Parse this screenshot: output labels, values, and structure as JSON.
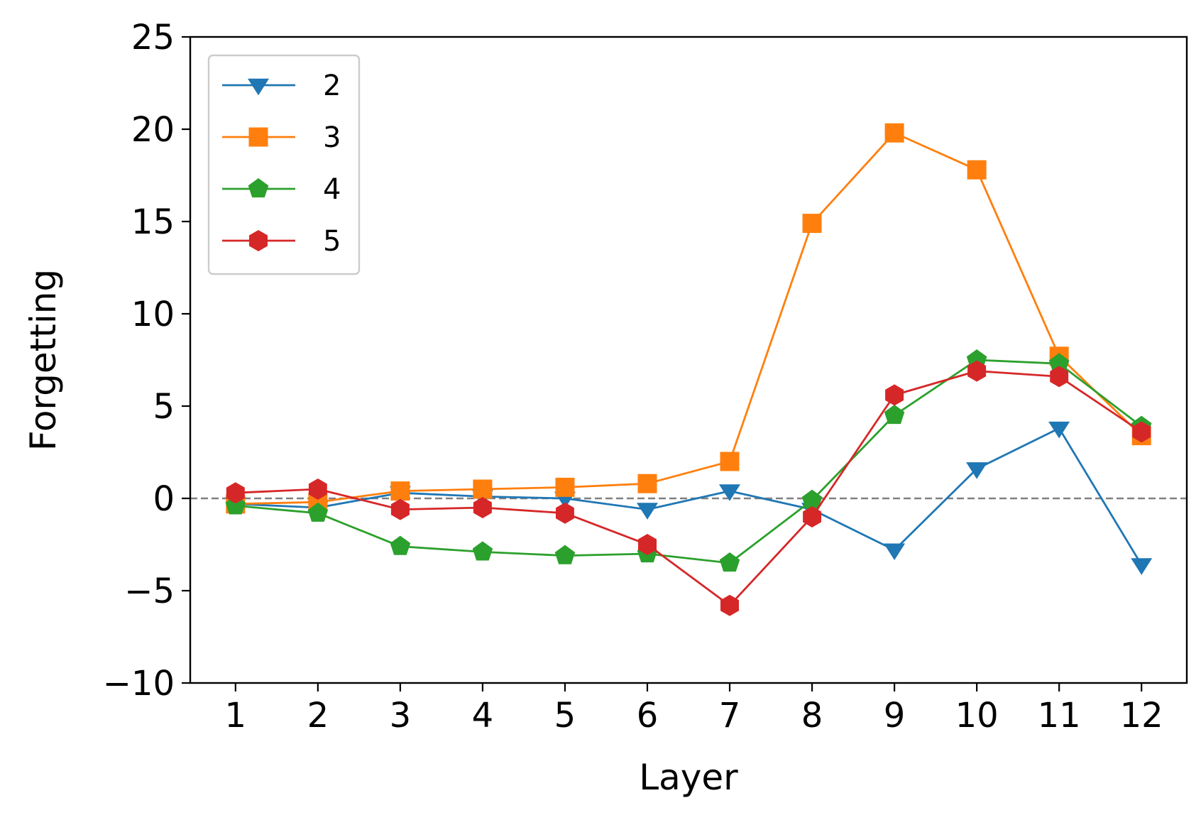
{
  "chart_data": {
    "type": "line",
    "xlabel": "Layer",
    "ylabel": "Forgetting",
    "x": [
      1,
      2,
      3,
      4,
      5,
      6,
      7,
      8,
      9,
      10,
      11,
      12
    ],
    "xticks": [
      "1",
      "2",
      "3",
      "4",
      "5",
      "6",
      "7",
      "8",
      "9",
      "10",
      "11",
      "12"
    ],
    "ylim": [
      -10,
      25
    ],
    "yticks": [
      -10,
      -5,
      0,
      5,
      10,
      15,
      20,
      25
    ],
    "ytick_labels": [
      "−10",
      "−5",
      "0",
      "5",
      "10",
      "15",
      "20",
      "25"
    ],
    "reference_line": {
      "y": 0,
      "style": "dashed",
      "color": "#808080"
    },
    "legend_position": "upper-left",
    "series": [
      {
        "name": "2",
        "color": "#1f77b4",
        "marker": "triangle-down",
        "values": [
          -0.3,
          -0.5,
          0.3,
          0.1,
          0.0,
          -0.6,
          0.4,
          -0.6,
          -2.8,
          1.6,
          3.8,
          -3.6
        ]
      },
      {
        "name": "3",
        "color": "#ff7f0e",
        "marker": "square",
        "values": [
          -0.3,
          -0.2,
          0.4,
          0.5,
          0.6,
          0.8,
          2.0,
          14.9,
          19.8,
          17.8,
          7.7,
          3.4
        ]
      },
      {
        "name": "4",
        "color": "#2ca02c",
        "marker": "pentagon",
        "values": [
          -0.4,
          -0.8,
          -2.6,
          -2.9,
          -3.1,
          -3.0,
          -3.5,
          -0.1,
          4.5,
          7.5,
          7.3,
          3.9
        ]
      },
      {
        "name": "5",
        "color": "#d62728",
        "marker": "hexagon",
        "values": [
          0.3,
          0.5,
          -0.6,
          -0.5,
          -0.8,
          -2.5,
          -5.8,
          -1.0,
          5.6,
          6.9,
          6.6,
          3.6
        ]
      }
    ]
  }
}
